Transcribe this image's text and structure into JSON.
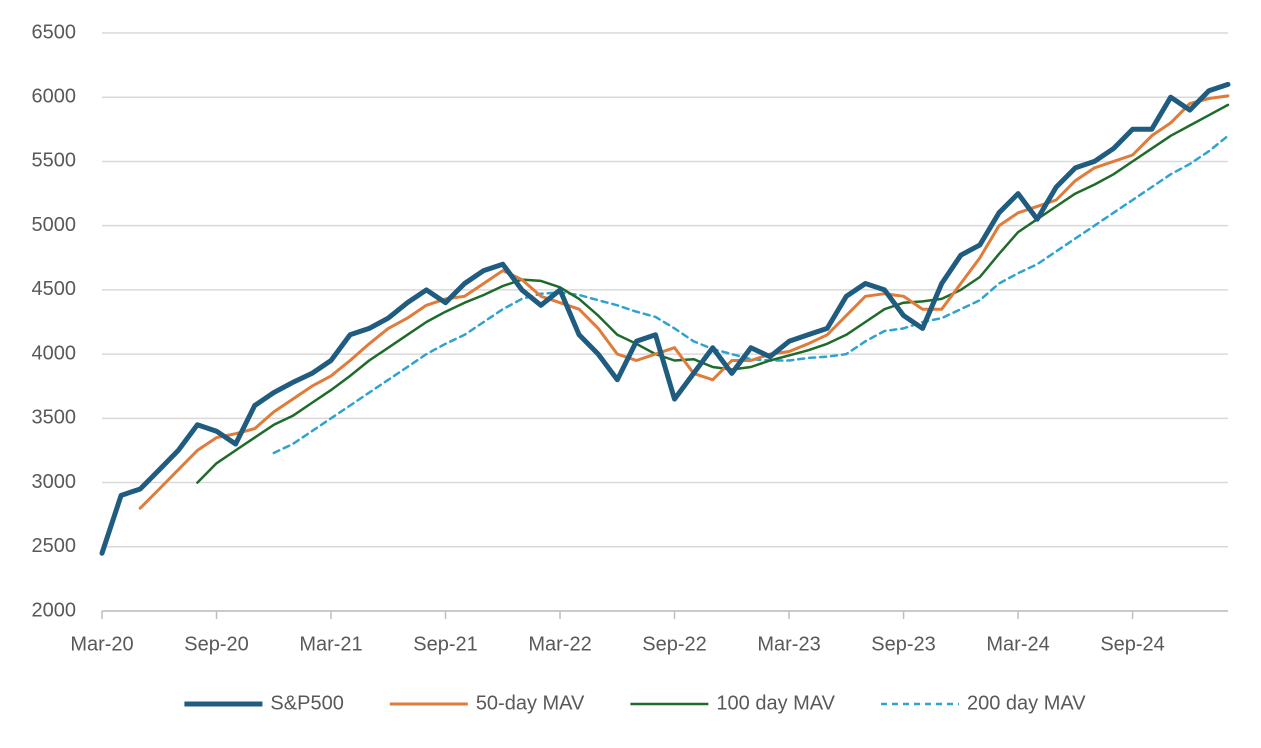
{
  "chart_data": {
    "type": "line",
    "categories": [
      "Mar-20",
      null,
      null,
      null,
      null,
      null,
      "Sep-20",
      null,
      null,
      null,
      null,
      null,
      "Mar-21",
      null,
      null,
      null,
      null,
      null,
      "Sep-21",
      null,
      null,
      null,
      null,
      null,
      "Mar-22",
      null,
      null,
      null,
      null,
      null,
      "Sep-22",
      null,
      null,
      null,
      null,
      null,
      "Mar-23",
      null,
      null,
      null,
      null,
      null,
      "Sep-23",
      null,
      null,
      null,
      null,
      null,
      "Mar-24",
      null,
      null,
      null,
      null,
      null,
      "Sep-24",
      null,
      null,
      null,
      null,
      null
    ],
    "series": [
      {
        "name": "S&P500",
        "color": "#1f5c80",
        "dashed": false,
        "values": [
          2450,
          2900,
          2950,
          3100,
          3250,
          3450,
          3400,
          3300,
          3600,
          3700,
          3780,
          3850,
          3950,
          4150,
          4200,
          4280,
          4400,
          4500,
          4400,
          4550,
          4650,
          4700,
          4500,
          4380,
          4500,
          4150,
          4000,
          3800,
          4100,
          4150,
          3650,
          3850,
          4050,
          3850,
          4050,
          3980,
          4100,
          4150,
          4200,
          4450,
          4550,
          4500,
          4300,
          4200,
          4550,
          4770,
          4850,
          5100,
          5250,
          5050,
          5300,
          5450,
          5500,
          5600,
          5750,
          5750,
          6000,
          5900,
          6050,
          6100
        ]
      },
      {
        "name": "50-day MAV",
        "color": "#e07b39",
        "dashed": false,
        "values": [
          null,
          null,
          2800,
          2950,
          3100,
          3250,
          3350,
          3380,
          3420,
          3550,
          3650,
          3750,
          3830,
          3950,
          4080,
          4200,
          4280,
          4380,
          4430,
          4450,
          4550,
          4650,
          4580,
          4450,
          4400,
          4350,
          4200,
          4000,
          3950,
          4000,
          4050,
          3850,
          3800,
          3950,
          3950,
          4000,
          4020,
          4080,
          4150,
          4300,
          4450,
          4470,
          4450,
          4350,
          4350,
          4550,
          4750,
          5000,
          5100,
          5150,
          5200,
          5350,
          5450,
          5500,
          5550,
          5700,
          5800,
          5950,
          5990,
          6010
        ]
      },
      {
        "name": "100 day MAV",
        "color": "#1e6b2a",
        "dashed": false,
        "values": [
          null,
          null,
          null,
          null,
          null,
          3000,
          3150,
          3250,
          3350,
          3450,
          3520,
          3620,
          3720,
          3830,
          3950,
          4050,
          4150,
          4250,
          4330,
          4400,
          4460,
          4530,
          4580,
          4570,
          4520,
          4430,
          4300,
          4150,
          4080,
          4000,
          3950,
          3960,
          3900,
          3880,
          3900,
          3950,
          3990,
          4030,
          4080,
          4150,
          4250,
          4350,
          4400,
          4410,
          4430,
          4500,
          4600,
          4780,
          4950,
          5050,
          5150,
          5250,
          5320,
          5400,
          5500,
          5600,
          5700,
          5780,
          5860,
          5940
        ]
      },
      {
        "name": "200 day MAV",
        "color": "#2fa3d0",
        "dashed": true,
        "values": [
          null,
          null,
          null,
          null,
          null,
          null,
          null,
          null,
          null,
          3230,
          3300,
          3400,
          3500,
          3600,
          3700,
          3800,
          3900,
          4000,
          4080,
          4150,
          4250,
          4350,
          4430,
          4470,
          4480,
          4460,
          4420,
          4380,
          4330,
          4290,
          4200,
          4100,
          4040,
          4000,
          3960,
          3950,
          3950,
          3970,
          3980,
          4000,
          4100,
          4180,
          4200,
          4250,
          4280,
          4350,
          4420,
          4550,
          4630,
          4700,
          4800,
          4900,
          5000,
          5100,
          5200,
          5300,
          5400,
          5480,
          5580,
          5700
        ]
      }
    ],
    "ylim": [
      2000,
      6500
    ],
    "yticks": [
      2000,
      2500,
      3000,
      3500,
      4000,
      4500,
      5000,
      5500,
      6000,
      6500
    ],
    "grid": true,
    "legend": "bottom"
  }
}
